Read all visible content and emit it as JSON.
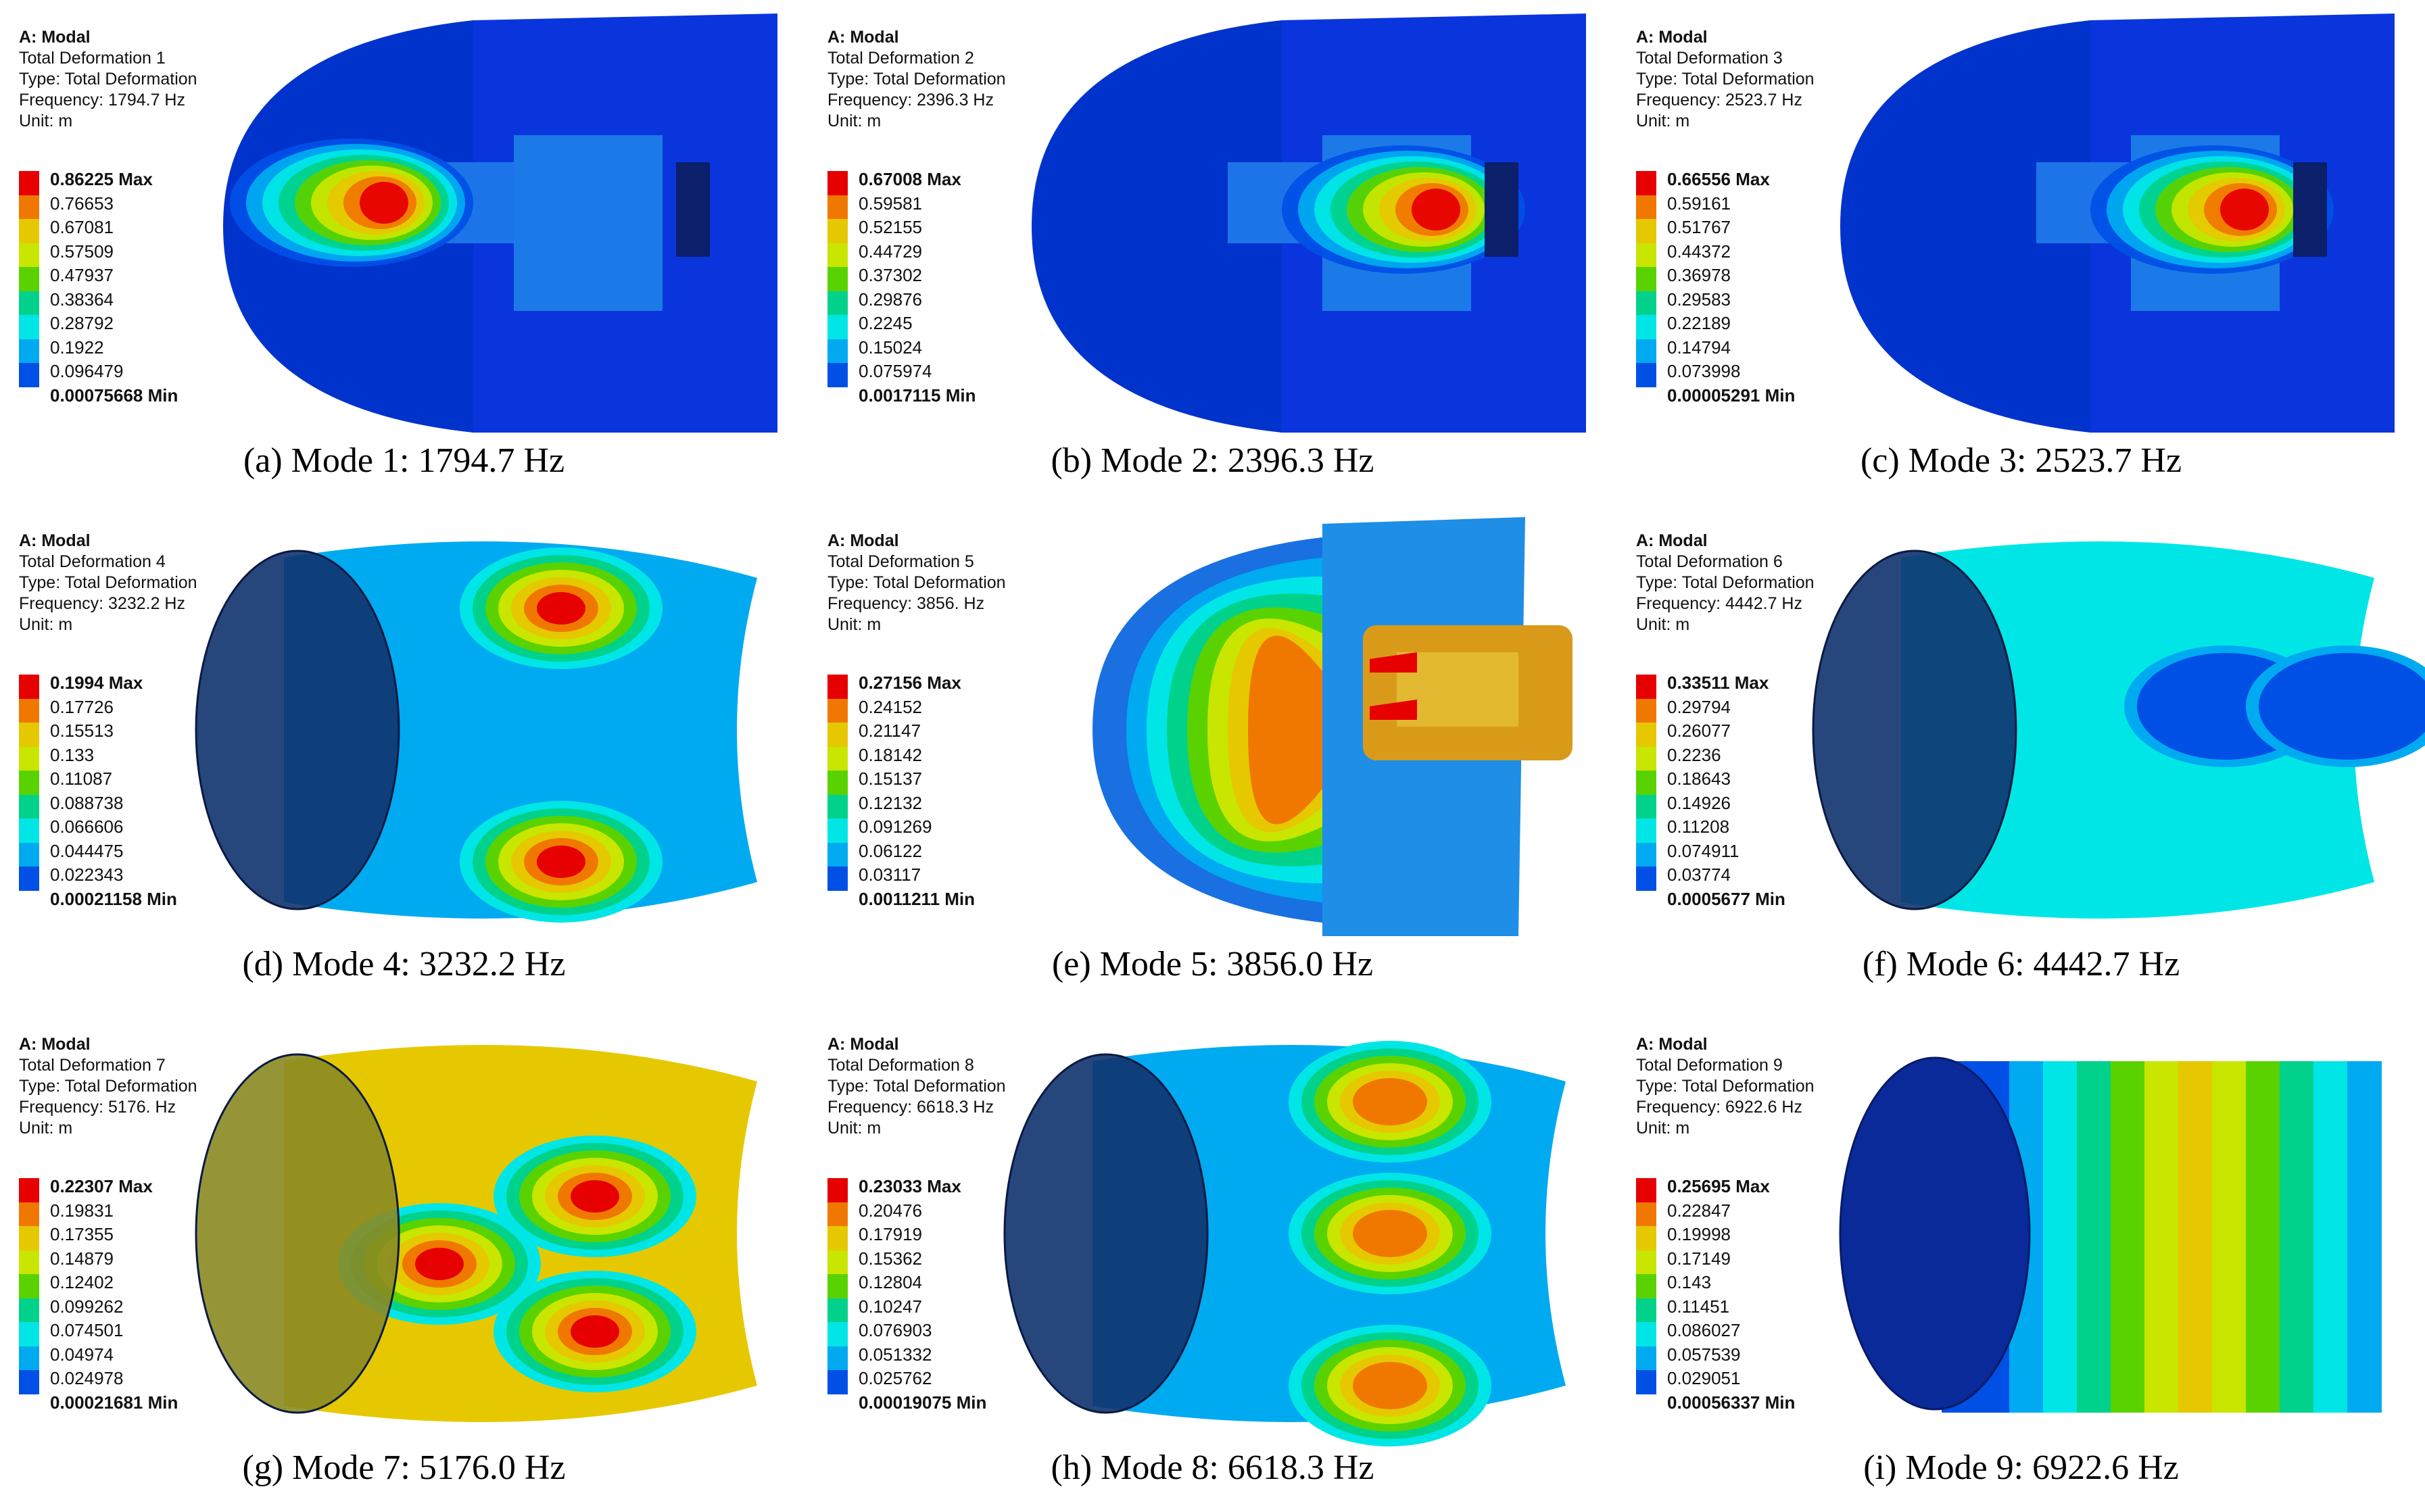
{
  "legend_colors": [
    "#e60000",
    "#f07800",
    "#e6c800",
    "#c8e600",
    "#5ad200",
    "#00d28c",
    "#00e6e6",
    "#00aaf0",
    "#0050e6"
  ],
  "panels": [
    {
      "id": "mode-1",
      "info": [
        "A: Modal",
        "Total Deformation 1",
        "Type: Total Deformation",
        "Frequency: 1794.7 Hz",
        "Unit: m"
      ],
      "legend": [
        "0.86225 Max",
        "0.76653",
        "0.67081",
        "0.57509",
        "0.47937",
        "0.38364",
        "0.28792",
        "0.1922",
        "0.096479",
        "0.00075668 Min"
      ],
      "caption": "(a) Mode 1: 1794.7 Hz",
      "view": "cut"
    },
    {
      "id": "mode-2",
      "info": [
        "A: Modal",
        "Total Deformation 2",
        "Type: Total Deformation",
        "Frequency: 2396.3 Hz",
        "Unit: m"
      ],
      "legend": [
        "0.67008 Max",
        "0.59581",
        "0.52155",
        "0.44729",
        "0.37302",
        "0.29876",
        "0.2245",
        "0.15024",
        "0.075974",
        "0.0017115 Min"
      ],
      "caption": "(b) Mode 2: 2396.3 Hz",
      "view": "cut"
    },
    {
      "id": "mode-3",
      "info": [
        "A: Modal",
        "Total Deformation 3",
        "Type: Total Deformation",
        "Frequency: 2523.7 Hz",
        "Unit: m"
      ],
      "legend": [
        "0.66556 Max",
        "0.59161",
        "0.51767",
        "0.44372",
        "0.36978",
        "0.29583",
        "0.22189",
        "0.14794",
        "0.073998",
        "0.00005291 Min"
      ],
      "caption": "(c) Mode 3: 2523.7 Hz",
      "view": "cut"
    },
    {
      "id": "mode-4",
      "info": [
        "A: Modal",
        "Total Deformation 4",
        "Type: Total Deformation",
        "Frequency: 3232.2 Hz",
        "Unit: m"
      ],
      "legend": [
        "0.1994 Max",
        "0.17726",
        "0.15513",
        "0.133",
        "0.11087",
        "0.088738",
        "0.066606",
        "0.044475",
        "0.022343",
        "0.00021158 Min"
      ],
      "caption": "(d) Mode 4: 3232.2 Hz",
      "view": "shell"
    },
    {
      "id": "mode-5",
      "info": [
        "A: Modal",
        "Total Deformation 5",
        "Type: Total Deformation",
        "Frequency: 3856. Hz",
        "Unit: m"
      ],
      "legend": [
        "0.27156 Max",
        "0.24152",
        "0.21147",
        "0.18142",
        "0.15137",
        "0.12132",
        "0.091269",
        "0.06122",
        "0.03117",
        "0.0011211 Min"
      ],
      "caption": "(e) Mode 5: 3856.0 Hz",
      "view": "cut2"
    },
    {
      "id": "mode-6",
      "info": [
        "A: Modal",
        "Total Deformation 6",
        "Type: Total Deformation",
        "Frequency: 4442.7 Hz",
        "Unit: m"
      ],
      "legend": [
        "0.33511 Max",
        "0.29794",
        "0.26077",
        "0.2236",
        "0.18643",
        "0.14926",
        "0.11208",
        "0.074911",
        "0.03774",
        "0.0005677 Min"
      ],
      "caption": "(f) Mode 6: 4442.7 Hz",
      "view": "shell"
    },
    {
      "id": "mode-7",
      "info": [
        "A: Modal",
        "Total Deformation 7",
        "Type: Total Deformation",
        "Frequency: 5176. Hz",
        "Unit: m"
      ],
      "legend": [
        "0.22307 Max",
        "0.19831",
        "0.17355",
        "0.14879",
        "0.12402",
        "0.099262",
        "0.074501",
        "0.04974",
        "0.024978",
        "0.00021681 Min"
      ],
      "caption": "(g) Mode 7: 5176.0 Hz",
      "view": "shell"
    },
    {
      "id": "mode-8",
      "info": [
        "A: Modal",
        "Total Deformation 8",
        "Type: Total Deformation",
        "Frequency: 6618.3 Hz",
        "Unit: m"
      ],
      "legend": [
        "0.23033 Max",
        "0.20476",
        "0.17919",
        "0.15362",
        "0.12804",
        "0.10247",
        "0.076903",
        "0.051332",
        "0.025762",
        "0.00019075 Min"
      ],
      "caption": "(h) Mode 8: 6618.3 Hz",
      "view": "shell"
    },
    {
      "id": "mode-9",
      "info": [
        "A: Modal",
        "Total Deformation 9",
        "Type: Total Deformation",
        "Frequency: 6922.6 Hz",
        "Unit: m"
      ],
      "legend": [
        "0.25695 Max",
        "0.22847",
        "0.19998",
        "0.17149",
        "0.143",
        "0.11451",
        "0.086027",
        "0.057539",
        "0.029051",
        "0.00056337 Min"
      ],
      "caption": "(i) Mode 9: 6922.6 Hz",
      "view": "bands"
    }
  ]
}
